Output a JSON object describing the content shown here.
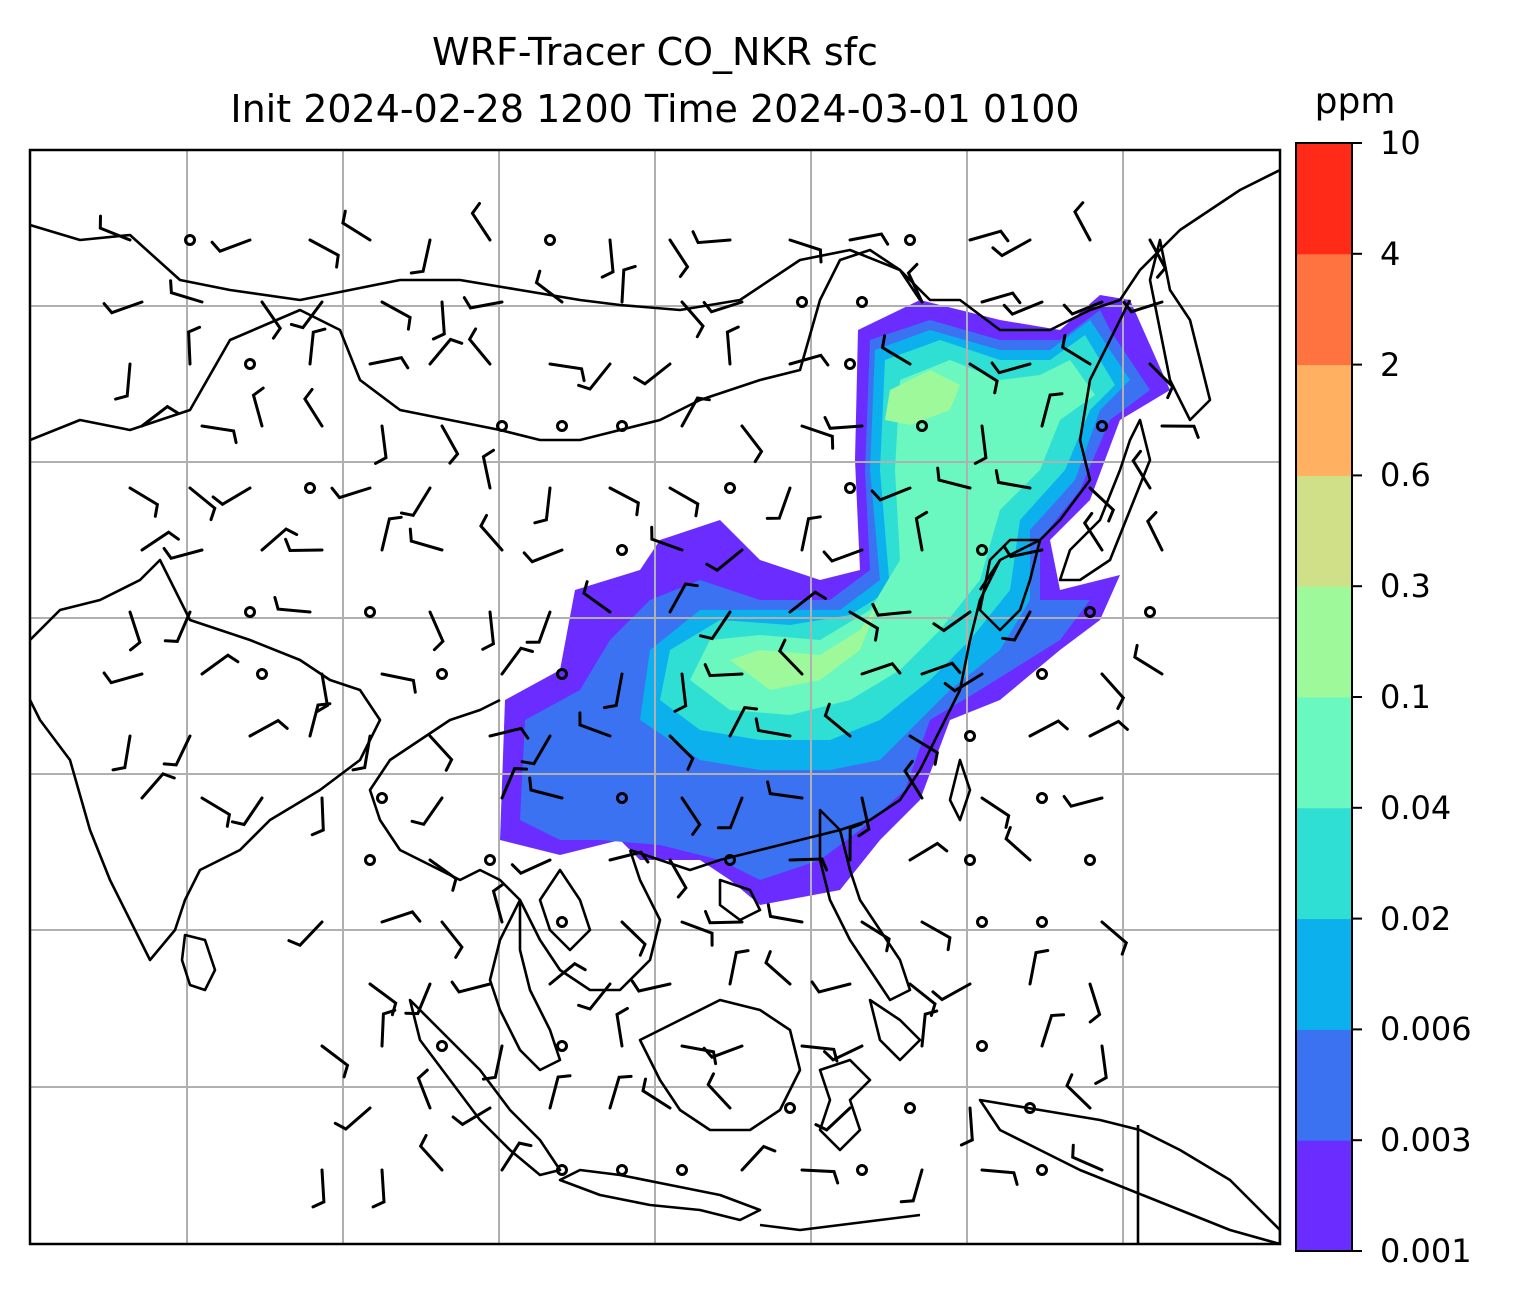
{
  "title": {
    "line1": "WRF-Tracer CO_NKR sfc",
    "line2": "Init 2024-02-28 1200 Time 2024-03-01 0100"
  },
  "colorbar": {
    "unit": "ppm",
    "levels": [
      "0.001",
      "0.003",
      "0.006",
      "0.02",
      "0.04",
      "0.1",
      "0.3",
      "0.6",
      "2",
      "4",
      "10"
    ],
    "colors": [
      "#6a2cff",
      "#3a72f2",
      "#0cb0ec",
      "#30dfd4",
      "#6af7c0",
      "#9ef99a",
      "#cfe088",
      "#ffb060",
      "#ff7340",
      "#ff2a18"
    ]
  },
  "map": {
    "field": "CO_NKR surface tracer concentration",
    "gridlines": true,
    "wind_barbs": true,
    "land_outline_color": "#000000",
    "grid_color": "#b0b0b0"
  }
}
